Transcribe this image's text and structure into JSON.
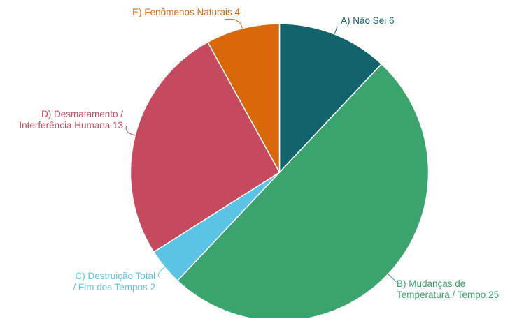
{
  "chart_data": {
    "type": "pie",
    "start_angle_deg": 0,
    "direction": "clockwise",
    "slices": [
      {
        "label_lines": [
          "A) Não Sei 6"
        ],
        "value": 6,
        "color": "#13636C"
      },
      {
        "label_lines": [
          "B) Mudanças de",
          "Temperatura / Tempo 25"
        ],
        "value": 25,
        "color": "#3BA36E"
      },
      {
        "label_lines": [
          "C) Destruição Total",
          "/ Fim dos Tempos 2"
        ],
        "value": 2,
        "color": "#5BC4E6"
      },
      {
        "label_lines": [
          "D) Desmatamento /",
          "Interferência Humana 13"
        ],
        "value": 13,
        "color": "#C64A5F"
      },
      {
        "label_lines": [
          "E) Fenômenos Naturais 4"
        ],
        "value": 4,
        "color": "#D9680A"
      }
    ],
    "label_colors": [
      "#13636C",
      "#3BA36E",
      "#5BC4E6",
      "#C64A5F",
      "#D9680A"
    ]
  }
}
